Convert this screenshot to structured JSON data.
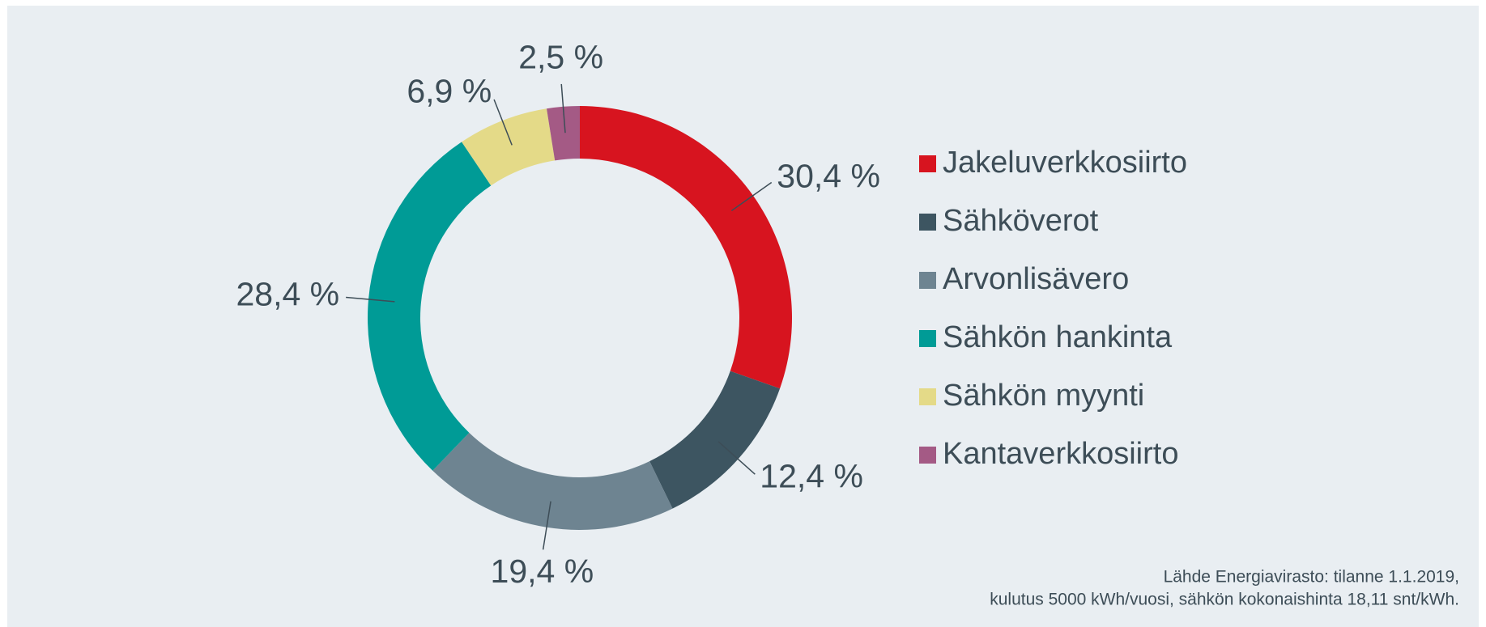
{
  "chart_data": {
    "type": "donut",
    "categories": [
      "Jakeluverkkosiirto",
      "Sähköverot",
      "Arvonlisävero",
      "Sähkön hankinta",
      "Sähkön myynti",
      "Kantaverkkosiirto"
    ],
    "values": [
      30.4,
      12.4,
      19.4,
      28.4,
      6.9,
      2.5
    ],
    "value_labels": [
      "30,4 %",
      "12,4 %",
      "19,4 %",
      "28,4 %",
      "6,9 %",
      "2,5 %"
    ],
    "colors": [
      "#d7141f",
      "#3d5561",
      "#6e8491",
      "#009b96",
      "#e4da88",
      "#a45a85"
    ],
    "legend": "right",
    "source": [
      "Lähde Energiavirasto: tilanne 1.1.2019,",
      "kulutus 5000 kWh/vuosi, sähkön kokonaishinta 18,11 snt/kWh."
    ]
  }
}
